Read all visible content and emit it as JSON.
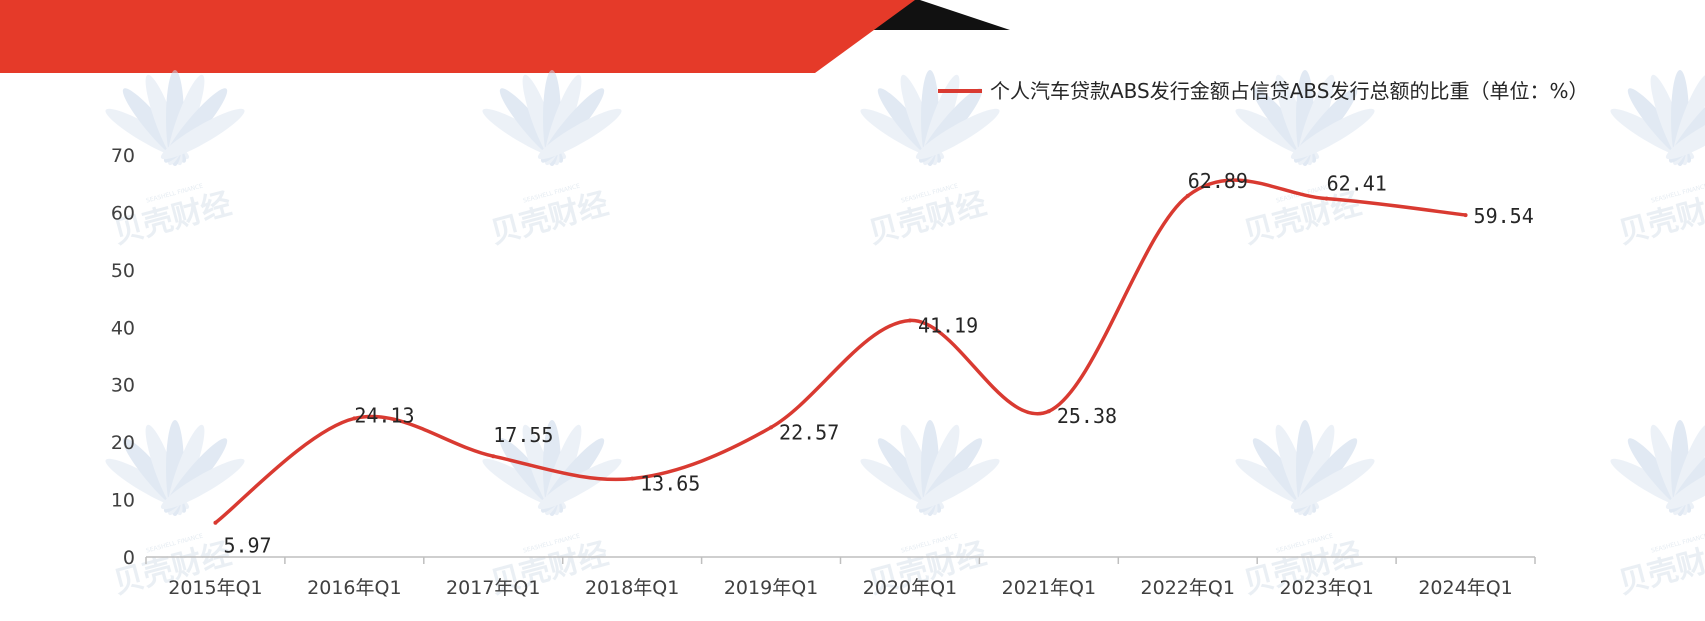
{
  "colors": {
    "banner_red": "#e53a29",
    "banner_dark": "#111111",
    "line": "#d93a31",
    "axis": "#bfbfbf",
    "watermark": "#a9bfd3"
  },
  "watermark": {
    "text": "贝壳财经",
    "subtext": "SEASHELL FINANCE"
  },
  "chart_data": {
    "type": "line",
    "categories": [
      "2015年Q1",
      "2016年Q1",
      "2017年Q1",
      "2018年Q1",
      "2019年Q1",
      "2020年Q1",
      "2021年Q1",
      "2022年Q1",
      "2023年Q1",
      "2024年Q1"
    ],
    "series": [
      {
        "name": "个人汽车贷款ABS发行金额占信贷ABS发行总额的比重（单位：%）",
        "values": [
          5.97,
          24.13,
          17.55,
          13.65,
          22.57,
          41.19,
          25.38,
          62.89,
          62.41,
          59.54
        ],
        "labels": [
          "5.97",
          "24.13",
          "17.55",
          "13.65",
          "22.57",
          "41.19",
          "25.38",
          "62.89",
          "62.41",
          "59.54"
        ]
      }
    ],
    "yticks": [
      "0",
      "10",
      "20",
      "30",
      "40",
      "50",
      "60",
      "70"
    ],
    "ylim": [
      0,
      70
    ],
    "grid": false,
    "legend_position": "top-right",
    "smooth": true
  }
}
